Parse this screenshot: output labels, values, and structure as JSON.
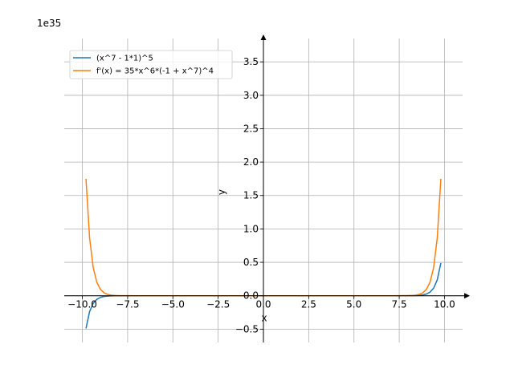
{
  "chart_data": {
    "type": "line",
    "title": "",
    "xlabel": "x",
    "ylabel": "y",
    "offset_text": "1e35",
    "xlim": [
      -11,
      11
    ],
    "ylim": [
      -0.7,
      3.85
    ],
    "y_scale_factor": 1e+35,
    "grid": true,
    "legend_position": "upper-left",
    "x_ticks": [
      -10,
      -7.5,
      -5,
      -2.5,
      0,
      2.5,
      5,
      7.5,
      10
    ],
    "x_tick_labels": [
      "−10.0",
      "−7.5",
      "−5.0",
      "−2.5",
      "0.0",
      "2.5",
      "5.0",
      "7.5",
      "10.0"
    ],
    "y_ticks": [
      -0.5,
      0,
      0.5,
      1,
      1.5,
      2,
      2.5,
      3,
      3.5
    ],
    "y_tick_labels": [
      "−0.5",
      "0.0",
      "0.5",
      "1.0",
      "1.5",
      "2.0",
      "2.5",
      "3.0",
      "3.5"
    ],
    "series": [
      {
        "name": "(x^7 - 1*1)^5",
        "color": "#1f77b4",
        "x": [
          -9.8,
          -9.6,
          -9.4,
          -9.2,
          -9.0,
          -8.8,
          -8.6,
          -8.4,
          -8.2,
          -8.0,
          -7.5,
          -7.0,
          -5.0,
          0,
          5.0,
          7.0,
          7.5,
          8.0,
          8.2,
          8.4,
          8.6,
          8.8,
          9.0,
          9.2,
          9.4,
          9.6,
          9.8
        ],
        "y": [
          -0.49,
          -0.237,
          -0.113,
          -0.054,
          -0.025,
          -0.011,
          -0.005,
          -0.002,
          -0.001,
          -0.0004,
          -4e-05,
          -3e-06,
          0,
          0,
          0,
          3e-06,
          4e-05,
          0.0004,
          0.001,
          0.002,
          0.005,
          0.011,
          0.025,
          0.054,
          0.113,
          0.237,
          0.49
        ]
      },
      {
        "name": "f'(x) = 35*x^6*(-1 + x^7)^4",
        "color": "#ff7f0e",
        "x": [
          -9.8,
          -9.6,
          -9.4,
          -9.2,
          -9.0,
          -8.8,
          -8.6,
          -8.4,
          -8.2,
          -8.0,
          -7.5,
          -7.0,
          -5.0,
          0,
          5.0,
          7.0,
          7.5,
          8.0,
          8.2,
          8.4,
          8.6,
          8.8,
          9.0,
          9.2,
          9.4,
          9.6,
          9.8
        ],
        "y": [
          1.75,
          0.866,
          0.42,
          0.2,
          0.095,
          0.044,
          0.02,
          0.009,
          0.004,
          0.0017,
          0.0002,
          1e-05,
          0,
          0,
          0,
          1e-05,
          0.0002,
          0.0017,
          0.004,
          0.009,
          0.02,
          0.044,
          0.095,
          0.2,
          0.42,
          0.866,
          1.75
        ]
      }
    ]
  }
}
